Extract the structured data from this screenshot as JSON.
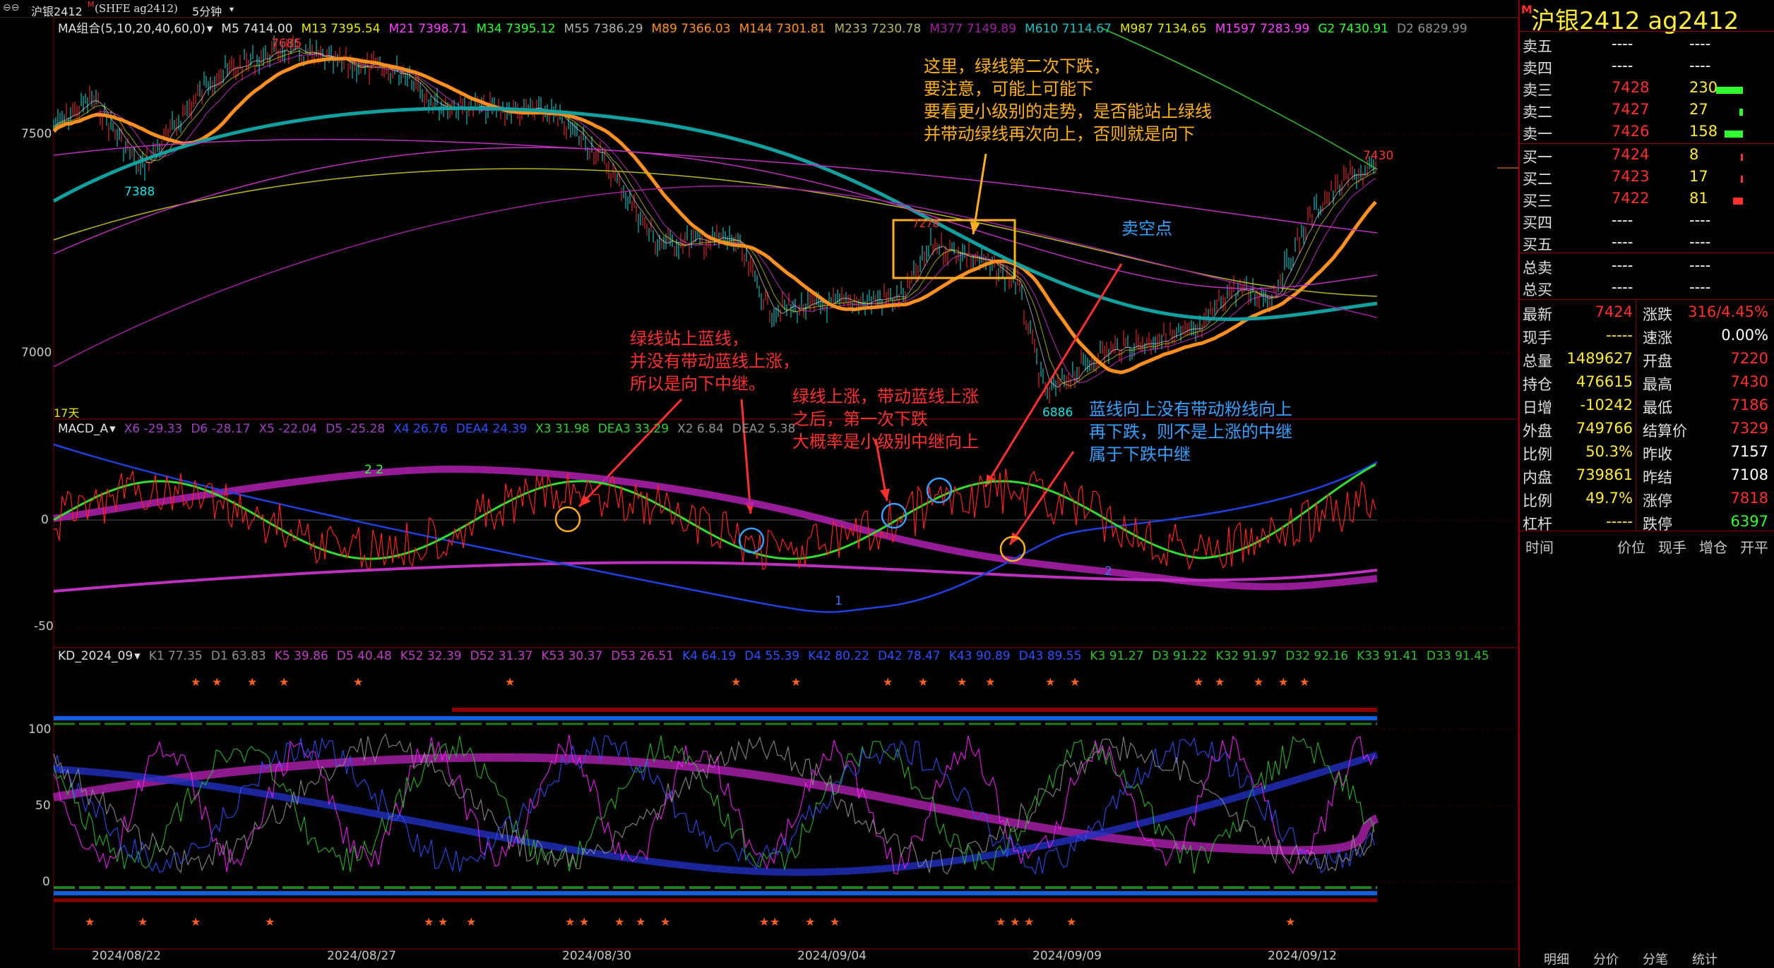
{
  "header": {
    "link_glyph": "⊖⊖",
    "instrument": "沪银2412",
    "sup": "M",
    "exchange": "(SHFE ag2412)",
    "period": "5分钟"
  },
  "ma_legend": [
    {
      "text": "MA组合(5,10,20,40,60,0)",
      "color": "#e0e0e0"
    },
    {
      "text": "M5 7414.00",
      "color": "#e0e0e0"
    },
    {
      "text": "M13 7395.54",
      "color": "#e8e800"
    },
    {
      "text": "M21 7398.71",
      "color": "#ff40ff"
    },
    {
      "text": "M34 7395.12",
      "color": "#30ff30"
    },
    {
      "text": "M55 7386.29",
      "color": "#b0b0b0"
    },
    {
      "text": "M89 7366.03",
      "color": "#ff9020"
    },
    {
      "text": "M144 7301.81",
      "color": "#ff9020"
    },
    {
      "text": "M233 7230.78",
      "color": "#b8b860"
    },
    {
      "text": "M377 7149.89",
      "color": "#a020a0"
    },
    {
      "text": "M610 7114.67",
      "color": "#20c0c0"
    },
    {
      "text": "M987 7134.65",
      "color": "#e8e800"
    },
    {
      "text": "M1597 7283.99",
      "color": "#ff40ff"
    },
    {
      "text": "G2 7430.91",
      "color": "#30ff30"
    },
    {
      "text": "D2 6829.99",
      "color": "#909090"
    }
  ],
  "price_axis": [
    "7500",
    "7000"
  ],
  "price_marks": {
    "high": "7685",
    "low_left": "7388",
    "right_high": "7430",
    "low": "6886",
    "box_label": "7278",
    "days": "17天"
  },
  "macd_legend": [
    {
      "text": "MACD_A",
      "color": "#e0e0e0"
    },
    {
      "text": "X6 -29.33",
      "color": "#a040c0"
    },
    {
      "text": "D6 -28.17",
      "color": "#a040c0"
    },
    {
      "text": "X5 -22.04",
      "color": "#a040c0"
    },
    {
      "text": "D5 -25.28",
      "color": "#a040c0"
    },
    {
      "text": "X4 26.76",
      "color": "#3050ff"
    },
    {
      "text": "DEA4 24.39",
      "color": "#3050ff"
    },
    {
      "text": "X3 31.98",
      "color": "#30d030"
    },
    {
      "text": "DEA3 33.29",
      "color": "#30d030"
    },
    {
      "text": "X2 6.84",
      "color": "#909090"
    },
    {
      "text": "DEA2 5.38",
      "color": "#909090"
    }
  ],
  "macd_axis": [
    "0",
    "-50"
  ],
  "macd_marks": {
    "label_22": "2  2",
    "label_1": "1",
    "label_2": "2"
  },
  "kd_legend": [
    {
      "text": "KD_2024_09",
      "color": "#e0e0e0"
    },
    {
      "text": "K1 77.35",
      "color": "#909090"
    },
    {
      "text": "D1 63.83",
      "color": "#909090"
    },
    {
      "text": "K5 39.86",
      "color": "#c040c0"
    },
    {
      "text": "D5 40.48",
      "color": "#c040c0"
    },
    {
      "text": "K52 32.39",
      "color": "#c040c0"
    },
    {
      "text": "D52 31.37",
      "color": "#c040c0"
    },
    {
      "text": "K53 30.37",
      "color": "#c040c0"
    },
    {
      "text": "D53 26.51",
      "color": "#c040c0"
    },
    {
      "text": "K4 64.19",
      "color": "#3050ff"
    },
    {
      "text": "D4 55.39",
      "color": "#3050ff"
    },
    {
      "text": "K42 80.22",
      "color": "#3050ff"
    },
    {
      "text": "D42 78.47",
      "color": "#3050ff"
    },
    {
      "text": "K43 90.89",
      "color": "#3050ff"
    },
    {
      "text": "D43 89.55",
      "color": "#3050ff"
    },
    {
      "text": "K3 91.27",
      "color": "#30c030"
    },
    {
      "text": "D3 91.22",
      "color": "#30c030"
    },
    {
      "text": "K32 91.97",
      "color": "#30c030"
    },
    {
      "text": "D32 92.16",
      "color": "#30c030"
    },
    {
      "text": "K33 91.41",
      "color": "#30c030"
    },
    {
      "text": "D33 91.45",
      "color": "#30c030"
    }
  ],
  "kd_axis": [
    "100",
    "50",
    "0"
  ],
  "x_dates": [
    "2024/08/22",
    "2024/08/27",
    "2024/08/30",
    "2024/09/04",
    "2024/09/09",
    "2024/09/12"
  ],
  "annotations": {
    "note1": [
      "这里，绿线第二次下跌，",
      "要注意，可能上可能下",
      "要看更小级别的走势，是否能站上绿线",
      "并带动绿线再次向上，否则就是向下"
    ],
    "note2": [
      "绿线站上蓝线，",
      "并没有带动蓝线上涨，",
      "所以是向下中继。"
    ],
    "note3": [
      "绿线上涨，带动蓝线上涨",
      "之后，第一次下跌",
      "大概率是小级别中继向上"
    ],
    "note4": [
      "蓝线向上没有带动粉线向上",
      "再下跌，则不是上涨的中继",
      "属于下跌中继"
    ],
    "sell_point": "卖空点"
  },
  "quote": {
    "mark": "M",
    "title": "沪银2412  ag2412",
    "asks": [
      {
        "label": "卖五",
        "price": "----",
        "vol": "----"
      },
      {
        "label": "卖四",
        "price": "----",
        "vol": "----"
      },
      {
        "label": "卖三",
        "price": "7428",
        "vol": "230"
      },
      {
        "label": "卖二",
        "price": "7427",
        "vol": "27"
      },
      {
        "label": "卖一",
        "price": "7426",
        "vol": "158"
      }
    ],
    "bids": [
      {
        "label": "买一",
        "price": "7424",
        "vol": "8"
      },
      {
        "label": "买二",
        "price": "7423",
        "vol": "17"
      },
      {
        "label": "买三",
        "price": "7422",
        "vol": "81"
      },
      {
        "label": "买四",
        "price": "----",
        "vol": "----"
      },
      {
        "label": "买五",
        "price": "----",
        "vol": "----"
      }
    ],
    "totals": [
      {
        "label": "总卖",
        "price": "----",
        "vol": "----"
      },
      {
        "label": "总买",
        "price": "----",
        "vol": "----"
      }
    ],
    "stats": [
      {
        "l1": "最新",
        "v1": "7424",
        "c1": "#ff3030",
        "l2": "涨跌",
        "v2": "316/4.45%",
        "c2": "#ff3030"
      },
      {
        "l1": "现手",
        "v1": "-----",
        "c1": "#ffeb3b",
        "l2": "速涨",
        "v2": "0.00%",
        "c2": "#ffffff"
      },
      {
        "l1": "总量",
        "v1": "1489627",
        "c1": "#ffeb3b",
        "l2": "开盘",
        "v2": "7220",
        "c2": "#ff3030"
      },
      {
        "l1": "持仓",
        "v1": "476615",
        "c1": "#ffeb3b",
        "l2": "最高",
        "v2": "7430",
        "c2": "#ff3030"
      },
      {
        "l1": "日增",
        "v1": "-10242",
        "c1": "#ffeb3b",
        "l2": "最低",
        "v2": "7186",
        "c2": "#ff3030"
      },
      {
        "l1": "外盘",
        "v1": "749766",
        "c1": "#ffeb3b",
        "l2": "结算价",
        "v2": "7329",
        "c2": "#ff3030"
      },
      {
        "l1": "比例",
        "v1": "50.3%",
        "c1": "#ffeb3b",
        "l2": "昨收",
        "v2": "7157",
        "c2": "#ffffff"
      },
      {
        "l1": "内盘",
        "v1": "739861",
        "c1": "#ffeb3b",
        "l2": "昨结",
        "v2": "7108",
        "c2": "#ffffff"
      },
      {
        "l1": "比例",
        "v1": "49.7%",
        "c1": "#ffeb3b",
        "l2": "涨停",
        "v2": "7818",
        "c2": "#ff3030"
      },
      {
        "l1": "杠杆",
        "v1": "-----",
        "c1": "#ffeb3b",
        "l2": "跌停",
        "v2": "6397",
        "c2": "#30ff30"
      }
    ],
    "trade_header": [
      "时间",
      "价位",
      "现手",
      "增仓",
      "开平"
    ],
    "bottom_tabs": [
      "明细",
      "分价",
      "分笔",
      "统计"
    ]
  },
  "colors": {
    "up": "#ff3030",
    "down": "#30ff30",
    "yellow": "#ffeb3b",
    "annot_orange": "#ffb020",
    "annot_red": "#ff3030",
    "annot_blue": "#3aa0ff"
  }
}
